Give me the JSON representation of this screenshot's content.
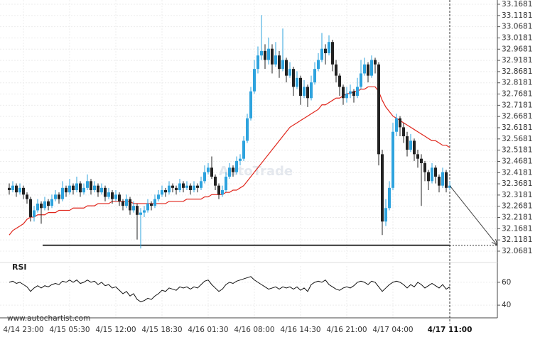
{
  "chart_data": {
    "type": "candlestick",
    "categories": [
      null,
      null,
      null,
      null,
      "4/14 23:00",
      null,
      null,
      null,
      null,
      null,
      null,
      null,
      null,
      null,
      null,
      null,
      null,
      "4/15 05:30",
      null,
      null,
      null,
      null,
      null,
      null,
      null,
      null,
      null,
      null,
      null,
      null,
      "4/15 12:00",
      null,
      null,
      null,
      null,
      null,
      null,
      null,
      null,
      null,
      null,
      null,
      null,
      "4/15 18:30",
      null,
      null,
      null,
      null,
      null,
      null,
      null,
      null,
      null,
      null,
      null,
      null,
      "4/16 01:30",
      null,
      null,
      null,
      null,
      null,
      null,
      null,
      null,
      null,
      null,
      null,
      null,
      "4/16 08:00",
      null,
      null,
      null,
      null,
      null,
      null,
      null,
      null,
      null,
      null,
      null,
      null,
      "4/16 14:30",
      null,
      null,
      null,
      null,
      null,
      null,
      null,
      null,
      null,
      null,
      null,
      null,
      "4/16 21:00",
      null,
      null,
      null,
      null,
      null,
      null,
      null,
      null,
      null,
      null,
      null,
      null,
      "4/17 04:00",
      null,
      null,
      null,
      null,
      null,
      null,
      null,
      null,
      null,
      null,
      null,
      null,
      null,
      null,
      null,
      "4/17 11:00"
    ],
    "candles": [
      [
        32.35,
        32.37,
        32.32,
        32.34
      ],
      [
        32.34,
        32.38,
        32.33,
        32.36
      ],
      [
        32.36,
        32.37,
        32.31,
        32.33
      ],
      [
        32.33,
        32.37,
        32.32,
        32.35
      ],
      [
        32.35,
        32.36,
        32.3,
        32.32
      ],
      [
        32.32,
        32.33,
        32.28,
        32.3
      ],
      [
        32.3,
        32.31,
        32.2,
        32.22
      ],
      [
        32.22,
        32.27,
        32.2,
        32.25
      ],
      [
        32.25,
        32.3,
        32.24,
        32.28
      ],
      [
        32.28,
        32.29,
        32.19,
        32.26
      ],
      [
        32.26,
        32.31,
        32.25,
        32.29
      ],
      [
        32.29,
        32.3,
        32.25,
        32.27
      ],
      [
        32.27,
        32.32,
        32.26,
        32.3
      ],
      [
        32.3,
        32.34,
        32.29,
        32.32
      ],
      [
        32.32,
        32.33,
        32.28,
        32.3
      ],
      [
        32.3,
        32.38,
        32.29,
        32.35
      ],
      [
        32.35,
        32.36,
        32.31,
        32.33
      ],
      [
        32.33,
        32.39,
        32.32,
        32.36
      ],
      [
        32.36,
        32.37,
        32.32,
        32.34
      ],
      [
        32.34,
        32.4,
        32.33,
        32.37
      ],
      [
        32.37,
        32.38,
        32.31,
        32.33
      ],
      [
        32.33,
        32.37,
        32.32,
        32.35
      ],
      [
        32.35,
        32.41,
        32.34,
        32.38
      ],
      [
        32.38,
        32.39,
        32.32,
        32.34
      ],
      [
        32.34,
        32.38,
        32.33,
        32.36
      ],
      [
        32.36,
        32.37,
        32.31,
        32.33
      ],
      [
        32.33,
        32.37,
        32.32,
        32.35
      ],
      [
        32.35,
        32.36,
        32.29,
        32.31
      ],
      [
        32.31,
        32.35,
        32.3,
        32.33
      ],
      [
        32.33,
        32.34,
        32.28,
        32.3
      ],
      [
        32.3,
        32.34,
        32.29,
        32.32
      ],
      [
        32.32,
        32.33,
        32.27,
        32.29
      ],
      [
        32.29,
        32.3,
        32.25,
        32.27
      ],
      [
        32.27,
        32.32,
        32.26,
        32.3
      ],
      [
        32.3,
        32.31,
        32.23,
        32.25
      ],
      [
        32.25,
        32.29,
        32.24,
        32.27
      ],
      [
        32.27,
        32.28,
        32.12,
        32.23
      ],
      [
        32.23,
        32.26,
        32.08,
        32.24
      ],
      [
        32.24,
        32.27,
        32.22,
        32.25
      ],
      [
        32.25,
        32.3,
        32.24,
        32.28
      ],
      [
        32.28,
        32.29,
        32.25,
        32.27
      ],
      [
        32.27,
        32.32,
        32.26,
        32.3
      ],
      [
        32.3,
        32.34,
        32.29,
        32.32
      ],
      [
        32.32,
        32.36,
        32.31,
        32.34
      ],
      [
        32.34,
        32.35,
        32.31,
        32.33
      ],
      [
        32.33,
        32.38,
        32.32,
        32.36
      ],
      [
        32.36,
        32.37,
        32.33,
        32.35
      ],
      [
        32.35,
        32.36,
        32.32,
        32.34
      ],
      [
        32.34,
        32.39,
        32.33,
        32.37
      ],
      [
        32.37,
        32.38,
        32.33,
        32.35
      ],
      [
        32.35,
        32.38,
        32.34,
        32.36
      ],
      [
        32.36,
        32.37,
        32.32,
        32.34
      ],
      [
        32.34,
        32.38,
        32.33,
        32.36
      ],
      [
        32.36,
        32.37,
        32.33,
        32.35
      ],
      [
        32.35,
        32.4,
        32.34,
        32.38
      ],
      [
        32.38,
        32.45,
        32.37,
        32.42
      ],
      [
        32.42,
        32.46,
        32.41,
        32.44
      ],
      [
        32.44,
        32.49,
        32.39,
        32.4
      ],
      [
        32.4,
        32.41,
        32.34,
        32.36
      ],
      [
        32.36,
        32.37,
        32.3,
        32.32
      ],
      [
        32.32,
        32.36,
        32.31,
        32.34
      ],
      [
        32.34,
        32.42,
        32.33,
        32.4
      ],
      [
        32.4,
        32.46,
        32.39,
        32.44
      ],
      [
        32.44,
        32.45,
        32.4,
        32.42
      ],
      [
        32.42,
        32.49,
        32.41,
        32.47
      ],
      [
        32.47,
        32.5,
        32.45,
        32.48
      ],
      [
        32.48,
        32.58,
        32.47,
        32.56
      ],
      [
        32.56,
        32.68,
        32.55,
        32.66
      ],
      [
        32.66,
        32.8,
        32.65,
        32.78
      ],
      [
        32.78,
        32.92,
        32.77,
        32.88
      ],
      [
        32.88,
        32.98,
        32.86,
        32.94
      ],
      [
        32.94,
        33.12,
        32.92,
        32.96
      ],
      [
        32.96,
        32.99,
        32.88,
        32.92
      ],
      [
        32.92,
        33.02,
        32.9,
        32.97
      ],
      [
        32.97,
        32.99,
        32.86,
        32.9
      ],
      [
        32.9,
        33.0,
        32.89,
        32.94
      ],
      [
        32.94,
        32.96,
        32.84,
        32.88
      ],
      [
        32.88,
        33.06,
        32.87,
        32.92
      ],
      [
        32.92,
        32.93,
        32.82,
        32.85
      ],
      [
        32.85,
        32.91,
        32.84,
        32.88
      ],
      [
        32.88,
        32.89,
        32.76,
        32.8
      ],
      [
        32.8,
        32.87,
        32.79,
        32.84
      ],
      [
        32.84,
        32.85,
        32.72,
        32.76
      ],
      [
        32.76,
        32.83,
        32.75,
        32.8
      ],
      [
        32.8,
        32.81,
        32.71,
        32.75
      ],
      [
        32.75,
        32.85,
        32.74,
        32.82
      ],
      [
        32.82,
        32.91,
        32.81,
        32.88
      ],
      [
        32.88,
        32.95,
        32.87,
        32.92
      ],
      [
        32.92,
        33.04,
        32.91,
        32.97
      ],
      [
        32.97,
        32.99,
        32.9,
        32.95
      ],
      [
        32.95,
        33.03,
        32.94,
        33.0
      ],
      [
        33.0,
        33.01,
        32.87,
        32.9
      ],
      [
        32.9,
        32.92,
        32.82,
        32.85
      ],
      [
        32.85,
        32.86,
        32.76,
        32.8
      ],
      [
        32.8,
        32.81,
        32.72,
        32.75
      ],
      [
        32.75,
        32.8,
        32.73,
        32.77
      ],
      [
        32.77,
        32.81,
        32.75,
        32.78
      ],
      [
        32.78,
        32.79,
        32.73,
        32.76
      ],
      [
        32.76,
        32.84,
        32.75,
        32.8
      ],
      [
        32.8,
        32.92,
        32.79,
        32.86
      ],
      [
        32.86,
        32.93,
        32.85,
        32.9
      ],
      [
        32.9,
        32.91,
        32.82,
        32.85
      ],
      [
        32.85,
        32.94,
        32.84,
        32.92
      ],
      [
        32.92,
        32.93,
        32.86,
        32.9
      ],
      [
        32.9,
        32.91,
        32.45,
        32.5
      ],
      [
        32.5,
        32.52,
        32.14,
        32.2
      ],
      [
        32.2,
        32.3,
        32.18,
        32.26
      ],
      [
        32.26,
        32.38,
        32.25,
        32.35
      ],
      [
        32.35,
        32.64,
        32.34,
        32.6
      ],
      [
        32.6,
        32.68,
        32.58,
        32.66
      ],
      [
        32.66,
        32.67,
        32.58,
        32.62
      ],
      [
        32.62,
        32.64,
        32.55,
        32.58
      ],
      [
        32.58,
        32.6,
        32.49,
        32.52
      ],
      [
        32.52,
        32.59,
        32.51,
        32.56
      ],
      [
        32.56,
        32.57,
        32.47,
        32.5
      ],
      [
        32.5,
        32.52,
        32.44,
        32.48
      ],
      [
        32.48,
        32.5,
        32.27,
        32.46
      ],
      [
        32.46,
        32.47,
        32.38,
        32.42
      ],
      [
        32.42,
        32.43,
        32.34,
        32.38
      ],
      [
        32.38,
        32.46,
        32.37,
        32.44
      ],
      [
        32.44,
        32.45,
        32.37,
        32.4
      ],
      [
        32.4,
        32.41,
        32.33,
        32.36
      ],
      [
        32.36,
        32.44,
        32.35,
        32.42
      ],
      [
        32.42,
        32.43,
        32.33,
        32.35
      ],
      [
        32.35,
        32.38,
        32.34,
        32.36
      ]
    ],
    "colors": {
      "up": "#2ea3de",
      "down": "#222222"
    },
    "ylim": [
      32.0333,
      33.1871
    ],
    "yticks": [
      33.1681,
      33.1181,
      33.0681,
      33.0181,
      32.9681,
      32.9181,
      32.8681,
      32.8181,
      32.7681,
      32.7181,
      32.6681,
      32.6181,
      32.5681,
      32.5181,
      32.4681,
      32.4181,
      32.3681,
      32.3181,
      32.2681,
      32.2181,
      32.1681,
      32.1181,
      32.0681
    ],
    "grid": true,
    "moving_average": {
      "color": "#e0261c",
      "values": [
        32.14,
        32.16,
        32.17,
        32.18,
        32.19,
        32.21,
        32.22,
        32.22,
        32.23,
        32.23,
        32.23,
        32.24,
        32.24,
        32.24,
        32.25,
        32.25,
        32.25,
        32.25,
        32.26,
        32.26,
        32.26,
        32.26,
        32.27,
        32.27,
        32.27,
        32.28,
        32.28,
        32.28,
        32.28,
        32.29,
        32.29,
        32.29,
        32.29,
        32.29,
        32.29,
        32.28,
        32.28,
        32.28,
        32.28,
        32.28,
        32.28,
        32.28,
        32.28,
        32.28,
        32.28,
        32.29,
        32.29,
        32.29,
        32.29,
        32.29,
        32.3,
        32.3,
        32.3,
        32.3,
        32.3,
        32.31,
        32.31,
        32.32,
        32.32,
        32.32,
        32.32,
        32.33,
        32.33,
        32.34,
        32.34,
        32.35,
        32.36,
        32.38,
        32.4,
        32.42,
        32.44,
        32.46,
        32.48,
        32.5,
        32.52,
        32.54,
        32.56,
        32.58,
        32.6,
        32.62,
        32.63,
        32.64,
        32.65,
        32.66,
        32.67,
        32.68,
        32.69,
        32.7,
        32.72,
        32.72,
        32.73,
        32.74,
        32.75,
        32.75,
        32.76,
        32.77,
        32.77,
        32.78,
        32.78,
        32.79,
        32.79,
        32.8,
        32.8,
        32.8,
        32.78,
        32.74,
        32.71,
        32.69,
        32.67,
        32.66,
        32.65,
        32.64,
        32.63,
        32.62,
        32.61,
        32.6,
        32.59,
        32.58,
        32.57,
        32.56,
        32.56,
        32.55,
        32.54,
        32.54,
        32.53
      ]
    },
    "support_level": 32.094,
    "support_color": "#333333",
    "rsi": {
      "name": "RSI",
      "color": "#111111",
      "ylim": [
        32,
        68
      ],
      "yticks": [
        60,
        40
      ],
      "values": [
        60,
        61,
        59,
        60,
        58,
        56,
        52,
        55,
        57,
        55,
        57,
        56,
        58,
        59,
        58,
        61,
        60,
        62,
        60,
        62,
        59,
        60,
        62,
        60,
        61,
        58,
        60,
        57,
        58,
        55,
        56,
        53,
        50,
        52,
        48,
        50,
        45,
        43,
        44,
        46,
        45,
        48,
        50,
        53,
        52,
        55,
        54,
        53,
        56,
        55,
        56,
        54,
        56,
        55,
        58,
        61,
        62,
        58,
        55,
        52,
        54,
        58,
        60,
        59,
        61,
        62,
        63,
        64,
        65,
        62,
        60,
        58,
        56,
        54,
        55,
        56,
        54,
        56,
        55,
        56,
        54,
        56,
        53,
        55,
        52,
        58,
        60,
        61,
        60,
        62,
        58,
        56,
        54,
        53,
        55,
        56,
        55,
        57,
        60,
        61,
        60,
        58,
        61,
        60,
        56,
        52,
        55,
        58,
        60,
        61,
        60,
        58,
        55,
        58,
        56,
        60,
        58,
        55,
        57,
        59,
        57,
        55,
        58,
        54,
        56
      ]
    },
    "watermark": "AutoTrade",
    "source": "www.autochartist.com"
  }
}
